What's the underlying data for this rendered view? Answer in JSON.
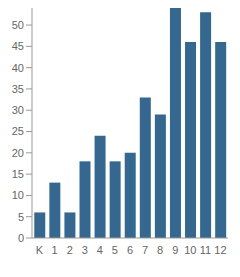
{
  "chart_data": {
    "type": "bar",
    "categories": [
      "K",
      "1",
      "2",
      "3",
      "4",
      "5",
      "6",
      "7",
      "8",
      "9",
      "10",
      "11",
      "12"
    ],
    "values": [
      6,
      13,
      6,
      18,
      24,
      18,
      20,
      33,
      29,
      54,
      46,
      53,
      46
    ],
    "color": "#346890",
    "ylim": [
      0,
      54
    ],
    "yticks": [
      0,
      5,
      10,
      15,
      20,
      25,
      30,
      35,
      40,
      45,
      50
    ],
    "grid": false
  }
}
